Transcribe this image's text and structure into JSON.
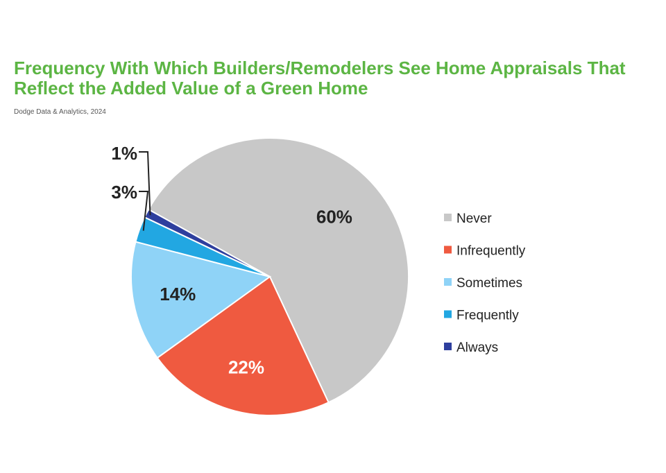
{
  "title_lines": [
    "Frequency With Which Builders/Remodelers See Home Appraisals That",
    "Reflect the Added Value of a Green Home"
  ],
  "subtitle": "Dodge Data & Analytics, 2024",
  "chart_data": {
    "type": "pie",
    "title": "Frequency With Which Builders/Remodelers See Home Appraisals That Reflect the Added Value of a Green Home",
    "source": "Dodge Data & Analytics, 2024",
    "legend_position": "right",
    "slices": [
      {
        "name": "Never",
        "value": 60,
        "label": "60%",
        "color": "#c8c8c8"
      },
      {
        "name": "Infrequently",
        "value": 22,
        "label": "22%",
        "color": "#ef5a40"
      },
      {
        "name": "Sometimes",
        "value": 14,
        "label": "14%",
        "color": "#8fd3f7"
      },
      {
        "name": "Frequently",
        "value": 3,
        "label": "3%",
        "color": "#22a7e2"
      },
      {
        "name": "Always",
        "value": 1,
        "label": "1%",
        "color": "#2e3f9e"
      }
    ]
  }
}
